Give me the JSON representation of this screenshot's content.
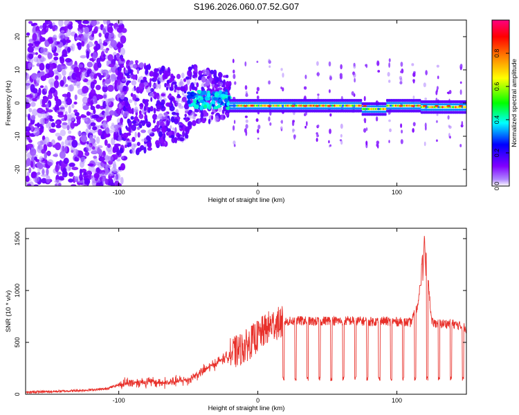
{
  "chart_data": [
    {
      "type": "heatmap",
      "title": "S196.2026.060.07.52.G07",
      "xlabel": "Height of straight line (km)",
      "ylabel": "Frequency (Hz)",
      "xlim": [
        -167,
        150
      ],
      "ylim": [
        -25,
        25
      ],
      "xticks": [
        -100,
        0,
        100
      ],
      "xtick_labels": [
        "-100",
        "0",
        "100"
      ],
      "yticks": [
        20,
        10,
        0,
        -10,
        -20
      ],
      "ytick_labels": [
        "20",
        "10",
        "0",
        "-10",
        "-20"
      ],
      "colorbar": {
        "label": "Normalized spectral amplitude",
        "range": [
          0,
          1
        ],
        "ticks": [
          0.0,
          0.2,
          0.4,
          0.6,
          0.8
        ],
        "tick_labels": [
          "0.0",
          "0.2",
          "0.4",
          "0.6",
          "0.8"
        ],
        "colormap": [
          "#ffffff",
          "#8000ff",
          "#0000ff",
          "#00ffff",
          "#00ff00",
          "#ffff00",
          "#ff8000",
          "#ff0000",
          "#ff0080"
        ]
      },
      "description_regions": [
        {
          "x_range": [
            -167,
            -100
          ],
          "signal": "scattered noise",
          "max_amplitude": 0.1
        },
        {
          "x_range": [
            -100,
            -20
          ],
          "signal": "transition, tone emerging near 0 Hz",
          "max_amplitude": 0.4
        },
        {
          "x_range": [
            -20,
            150
          ],
          "signal": "steady tone near -1 Hz",
          "max_amplitude": 0.9
        }
      ]
    },
    {
      "type": "line",
      "xlabel": "Height of straight line (km)",
      "ylabel": "SNR (10 * v/v)",
      "xlim": [
        -167,
        150
      ],
      "ylim": [
        0,
        1600
      ],
      "xticks": [
        -100,
        0,
        100
      ],
      "xtick_labels": [
        "-100",
        "0",
        "100"
      ],
      "yticks": [
        0,
        500,
        1000,
        1500
      ],
      "ytick_labels": [
        "0",
        "500",
        "1000",
        "1500"
      ],
      "color": "#e8302a",
      "series": [
        {
          "name": "SNR",
          "x": [
            -167,
            -150,
            -130,
            -110,
            -95,
            -80,
            -65,
            -50,
            -40,
            -30,
            -20,
            -10,
            0,
            10,
            20,
            30,
            40,
            50,
            60,
            70,
            80,
            90,
            100,
            110,
            115,
            120,
            125,
            130,
            140,
            150
          ],
          "y": [
            20,
            25,
            35,
            50,
            110,
            120,
            110,
            140,
            220,
            300,
            380,
            450,
            560,
            670,
            700,
            710,
            700,
            710,
            705,
            710,
            700,
            705,
            700,
            690,
            850,
            1520,
            690,
            680,
            680,
            640
          ]
        }
      ],
      "periodic_dropouts": {
        "start_x": 18,
        "end_x": 150,
        "period_km": 8.6,
        "drop_to": 130
      }
    }
  ]
}
